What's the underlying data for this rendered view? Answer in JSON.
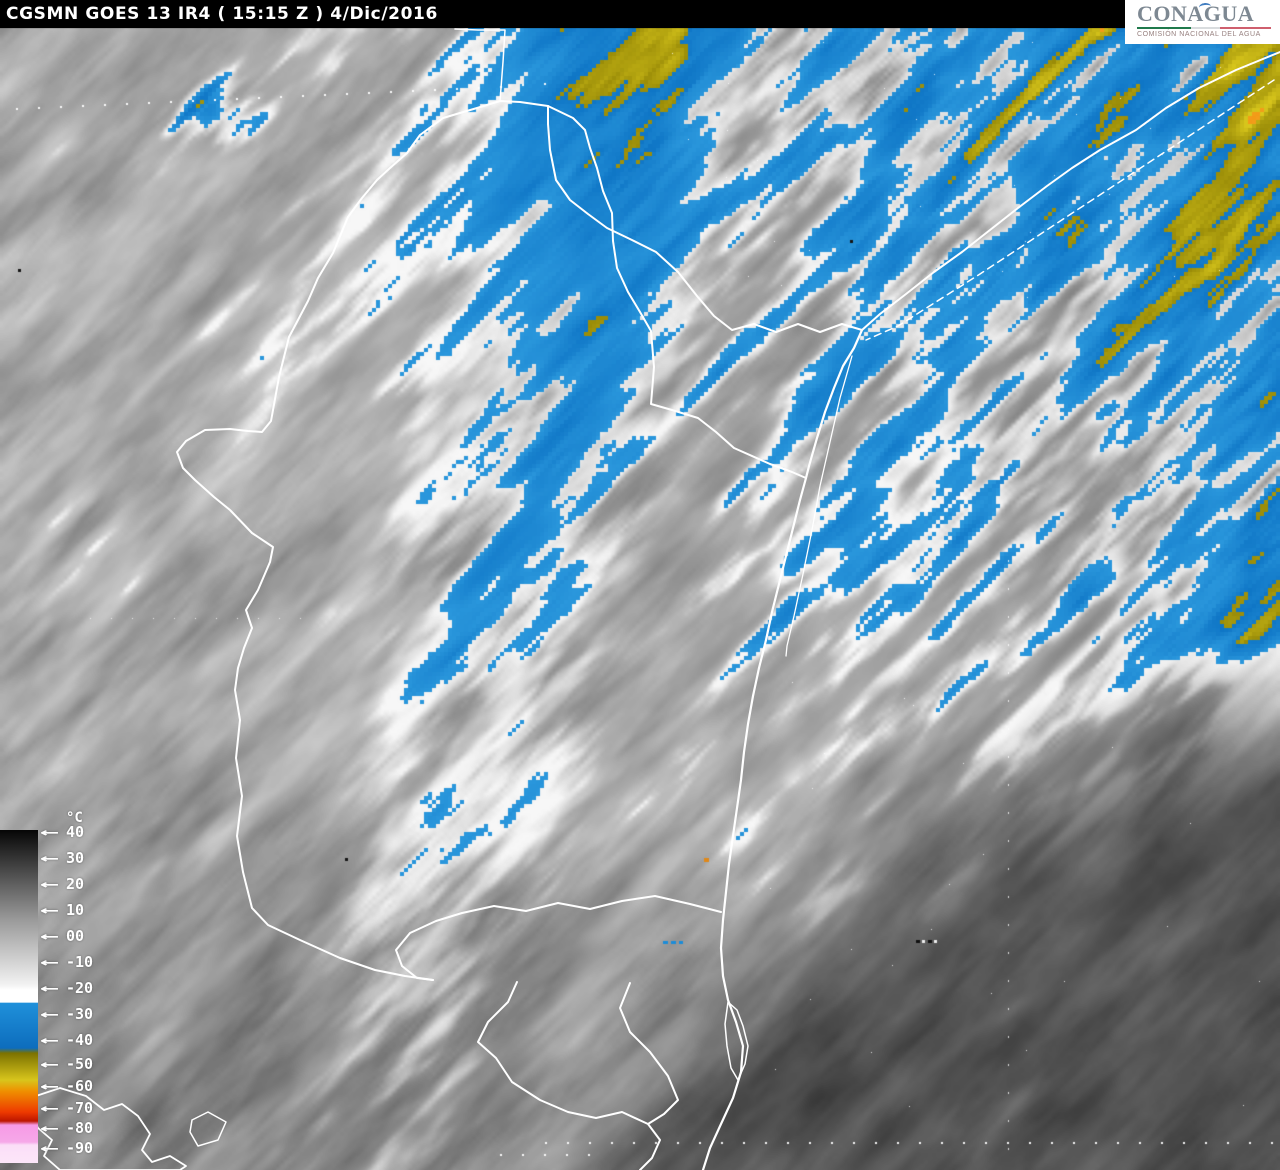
{
  "title_bar": {
    "title": "CGSMN GOES 13 IR4 ( 15:15 Z ) 4/Dic/2016"
  },
  "logo": {
    "name": "CONAGUA",
    "subtitle": "COMISIÓN NACIONAL DEL AGUA"
  },
  "scale": {
    "unit": "°C",
    "arrow": "←",
    "labels": [
      "40",
      "30",
      "20",
      "10",
      "00",
      "-10",
      "-20",
      "-30",
      "-40",
      "-50",
      "-60",
      "-70",
      "-80",
      "-90"
    ],
    "bar_gradient": [
      {
        "c": "#060606",
        "p": 0
      },
      {
        "c": "#9a9a9a",
        "p": 90
      },
      {
        "c": "#f2f2f2",
        "p": 155
      },
      {
        "c": "#ffffff",
        "p": 160
      },
      {
        "c": "#ffffff",
        "p": 172
      },
      {
        "c": "#1f90da",
        "p": 173
      },
      {
        "c": "#0d6dbd",
        "p": 218
      },
      {
        "c": "#7c7200",
        "p": 223
      },
      {
        "c": "#d8c51c",
        "p": 250
      },
      {
        "c": "#ef9000",
        "p": 261
      },
      {
        "c": "#ee3a00",
        "p": 282
      },
      {
        "c": "#bd1600",
        "p": 291
      },
      {
        "c": "#f79ae6",
        "p": 295
      },
      {
        "c": "#f6a8e8",
        "p": 312
      },
      {
        "c": "#fbdef7",
        "p": 315
      },
      {
        "c": "#fce6f9",
        "p": 333
      }
    ]
  },
  "map": {
    "palette": {
      "enhanced_blue": "#1b8cd8",
      "enhanced_yellow": "#c9b70e",
      "enhanced_orange": "#f09a1e",
      "sea_dark": "#4d4d4d",
      "cloud_gray": "#a8a8a8",
      "boundary_white": "#ffffff"
    }
  }
}
